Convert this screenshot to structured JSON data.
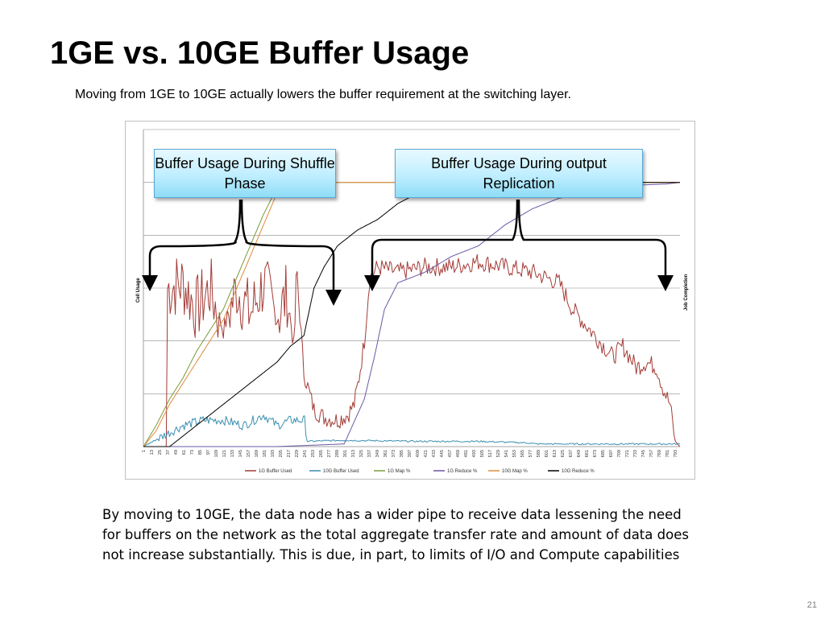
{
  "slide": {
    "title": "1GE vs. 10GE Buffer Usage",
    "subtitle": "Moving from 1GE to 10GE actually lowers the buffer requirement at the switching layer.",
    "body": "By moving to 10GE, the data node has a wider pipe to receive data lessening the need for buffers on the network as the total aggregate transfer rate and amount of data does not increase substantially. This is due, in part, to limits of I/O and Compute capabilities",
    "page_number": "21"
  },
  "callouts": {
    "shuffle": "Buffer Usage During Shuffle Phase",
    "replication": "Buffer Usage During output Replication"
  },
  "chart_data": {
    "type": "line",
    "ylabel": "Cell Usage",
    "y2label": "Job Completion",
    "xlim": [
      1,
      800
    ],
    "ylim": [
      0,
      6
    ],
    "grid": true,
    "legend_position": "bottom",
    "x_ticks": [
      "1",
      "13",
      "25",
      "37",
      "49",
      "61",
      "73",
      "85",
      "97",
      "109",
      "121",
      "133",
      "145",
      "157",
      "169",
      "181",
      "193",
      "205",
      "217",
      "229",
      "241",
      "253",
      "265",
      "277",
      "289",
      "301",
      "313",
      "325",
      "337",
      "349",
      "361",
      "373",
      "385",
      "397",
      "409",
      "421",
      "433",
      "445",
      "457",
      "469",
      "481",
      "493",
      "505",
      "517",
      "529",
      "541",
      "553",
      "565",
      "577",
      "589",
      "601",
      "613",
      "625",
      "637",
      "649",
      "661",
      "673",
      "685",
      "697",
      "709",
      "721",
      "733",
      "745",
      "757",
      "769",
      "781",
      "793"
    ],
    "series": [
      {
        "name": "1G Buffer Used",
        "color": "#a33b36",
        "points": [
          [
            1,
            0
          ],
          [
            35,
            0
          ],
          [
            37,
            3
          ],
          [
            60,
            3.1
          ],
          [
            80,
            2.6
          ],
          [
            100,
            3.0
          ],
          [
            120,
            2.2
          ],
          [
            140,
            3.0
          ],
          [
            160,
            2.5
          ],
          [
            180,
            3.1
          ],
          [
            200,
            2.4
          ],
          [
            215,
            2.9
          ],
          [
            225,
            1.9
          ],
          [
            230,
            3.2
          ],
          [
            240,
            1.4
          ],
          [
            255,
            0.7
          ],
          [
            270,
            0.55
          ],
          [
            290,
            0.5
          ],
          [
            305,
            0.6
          ],
          [
            315,
            0.8
          ],
          [
            322,
            1.3
          ],
          [
            330,
            2.0
          ],
          [
            338,
            3.2
          ],
          [
            350,
            3.4
          ],
          [
            380,
            3.3
          ],
          [
            420,
            3.4
          ],
          [
            460,
            3.4
          ],
          [
            500,
            3.5
          ],
          [
            540,
            3.4
          ],
          [
            580,
            3.3
          ],
          [
            620,
            3.1
          ],
          [
            640,
            2.6
          ],
          [
            660,
            2.3
          ],
          [
            680,
            2.0
          ],
          [
            700,
            1.7
          ],
          [
            715,
            1.9
          ],
          [
            735,
            1.5
          ],
          [
            750,
            1.6
          ],
          [
            765,
            1.5
          ],
          [
            775,
            1.1
          ],
          [
            785,
            0.8
          ],
          [
            793,
            0.1
          ],
          [
            800,
            0
          ]
        ]
      },
      {
        "name": "10G Buffer Used",
        "color": "#3b8fb0",
        "points": [
          [
            1,
            0
          ],
          [
            30,
            0.2
          ],
          [
            60,
            0.4
          ],
          [
            90,
            0.5
          ],
          [
            120,
            0.5
          ],
          [
            150,
            0.4
          ],
          [
            180,
            0.6
          ],
          [
            200,
            0.4
          ],
          [
            220,
            0.5
          ],
          [
            241,
            0.5
          ],
          [
            245,
            0.1
          ],
          [
            300,
            0.12
          ],
          [
            400,
            0.1
          ],
          [
            500,
            0.1
          ],
          [
            575,
            0.07
          ],
          [
            585,
            0.05
          ],
          [
            800,
            0.05
          ]
        ]
      },
      {
        "name": "1G Map %",
        "color": "#7a9a3a",
        "points": [
          [
            1,
            0
          ],
          [
            20,
            0.4
          ],
          [
            40,
            0.9
          ],
          [
            60,
            1.3
          ],
          [
            80,
            1.8
          ],
          [
            100,
            2.2
          ],
          [
            120,
            2.6
          ],
          [
            140,
            3.2
          ],
          [
            160,
            3.8
          ],
          [
            180,
            4.4
          ],
          [
            200,
            4.9
          ],
          [
            215,
            5.0
          ],
          [
            800,
            5.0
          ]
        ]
      },
      {
        "name": "1G Reduce %",
        "color": "#6b57a5",
        "points": [
          [
            1,
            0
          ],
          [
            200,
            0
          ],
          [
            300,
            0.05
          ],
          [
            330,
            0.9
          ],
          [
            345,
            1.7
          ],
          [
            360,
            2.6
          ],
          [
            380,
            3.1
          ],
          [
            420,
            3.3
          ],
          [
            460,
            3.6
          ],
          [
            500,
            3.8
          ],
          [
            540,
            4.2
          ],
          [
            580,
            4.5
          ],
          [
            620,
            4.7
          ],
          [
            660,
            4.8
          ],
          [
            700,
            4.9
          ],
          [
            740,
            4.95
          ],
          [
            780,
            4.97
          ],
          [
            800,
            5.0
          ]
        ]
      },
      {
        "name": "10G Map %",
        "color": "#e08a3a",
        "points": [
          [
            1,
            0
          ],
          [
            20,
            0.3
          ],
          [
            40,
            0.8
          ],
          [
            60,
            1.2
          ],
          [
            80,
            1.6
          ],
          [
            100,
            2.0
          ],
          [
            120,
            2.4
          ],
          [
            140,
            3.0
          ],
          [
            160,
            3.6
          ],
          [
            180,
            4.2
          ],
          [
            200,
            4.8
          ],
          [
            212,
            5.0
          ],
          [
            800,
            5.0
          ]
        ]
      },
      {
        "name": "10G Reduce %",
        "color": "#000000",
        "points": [
          [
            1,
            0
          ],
          [
            40,
            0
          ],
          [
            60,
            0.2
          ],
          [
            80,
            0.4
          ],
          [
            100,
            0.6
          ],
          [
            120,
            0.8
          ],
          [
            140,
            1.0
          ],
          [
            160,
            1.2
          ],
          [
            180,
            1.4
          ],
          [
            200,
            1.6
          ],
          [
            220,
            1.9
          ],
          [
            240,
            2.1
          ],
          [
            255,
            3.0
          ],
          [
            270,
            3.4
          ],
          [
            290,
            3.8
          ],
          [
            320,
            4.1
          ],
          [
            350,
            4.3
          ],
          [
            380,
            4.6
          ],
          [
            410,
            4.8
          ],
          [
            430,
            4.95
          ],
          [
            440,
            5.0
          ],
          [
            800,
            5.0
          ]
        ]
      }
    ]
  }
}
